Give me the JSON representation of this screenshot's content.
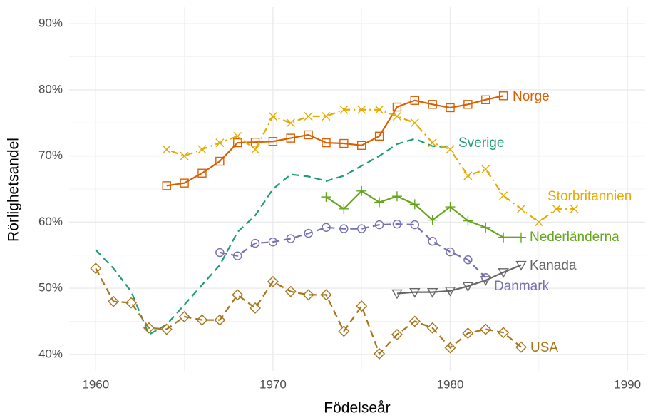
{
  "chart_data": {
    "type": "line",
    "x_label": "Födelseår",
    "y_label": "Rörlighetsandel",
    "xlim": [
      1958.5,
      1991
    ],
    "xticks": [
      1960,
      1970,
      1980,
      1990
    ],
    "ylim": [
      37.5,
      92.5
    ],
    "yticks": [
      {
        "value": 40,
        "label": "40%"
      },
      {
        "value": 50,
        "label": "50%"
      },
      {
        "value": 60,
        "label": "60%"
      },
      {
        "value": 70,
        "label": "70%"
      },
      {
        "value": 80,
        "label": "80%"
      },
      {
        "value": 90,
        "label": "90%"
      }
    ],
    "grid": true,
    "series": [
      {
        "name": "Norge",
        "color": "#d95f02",
        "marker": "square",
        "dash": "solid",
        "x": [
          1964,
          1965,
          1966,
          1967,
          1968,
          1969,
          1970,
          1971,
          1972,
          1973,
          1974,
          1975,
          1976,
          1977,
          1978,
          1979,
          1980,
          1981,
          1982,
          1983
        ],
        "values": [
          65.5,
          65.9,
          67.4,
          69.2,
          72.0,
          72.1,
          72.2,
          72.7,
          73.2,
          72.0,
          71.9,
          71.6,
          73.0,
          77.4,
          78.4,
          77.8,
          77.3,
          77.8,
          78.5,
          79.1
        ]
      },
      {
        "name": "Sverige",
        "color": "#1b9e77",
        "marker": "none",
        "dash": "dashed",
        "x": [
          1960,
          1961,
          1962,
          1963,
          1964,
          1965,
          1966,
          1967,
          1968,
          1969,
          1970,
          1971,
          1972,
          1973,
          1974,
          1975,
          1976,
          1977,
          1978,
          1979,
          1980
        ],
        "values": [
          55.8,
          53,
          49.5,
          43,
          44.5,
          47.5,
          50.5,
          53.5,
          58.5,
          61,
          65,
          67.2,
          66.9,
          66.2,
          67,
          68.5,
          70,
          71.8,
          72.6,
          71.5,
          71.3
        ]
      },
      {
        "name": "Storbritannien",
        "color": "#e6ab02",
        "marker": "x",
        "dash": "dotdash",
        "x": [
          1964,
          1965,
          1966,
          1967,
          1968,
          1969,
          1970,
          1971,
          1972,
          1973,
          1974,
          1975,
          1976,
          1977,
          1978,
          1979,
          1980,
          1981,
          1982,
          1983,
          1984,
          1985,
          1986,
          1987
        ],
        "values": [
          71,
          70,
          71,
          72,
          73,
          71,
          76,
          75,
          76,
          76,
          77,
          77,
          77,
          76,
          75,
          72,
          71,
          67,
          68,
          64,
          62,
          60,
          62,
          62
        ]
      },
      {
        "name": "Nederländerna",
        "color": "#66a61e",
        "marker": "plus",
        "dash": "solid",
        "x": [
          1973,
          1974,
          1975,
          1976,
          1977,
          1978,
          1979,
          1980,
          1981,
          1982,
          1983,
          1984
        ],
        "values": [
          63.8,
          62,
          64.7,
          63,
          63.9,
          62.7,
          60.3,
          62.3,
          60.2,
          59.2,
          57.7,
          57.7
        ]
      },
      {
        "name": "Kanada",
        "color": "#666666",
        "marker": "triangle-down",
        "dash": "solid",
        "x": [
          1977,
          1978,
          1979,
          1980,
          1981,
          1982,
          1983,
          1984
        ],
        "values": [
          49.2,
          49.4,
          49.4,
          49.6,
          50.3,
          51.2,
          52.4,
          53.5
        ]
      },
      {
        "name": "Danmark",
        "color": "#7570b3",
        "marker": "circle",
        "dash": "dashed",
        "x": [
          1967,
          1968,
          1969,
          1970,
          1971,
          1972,
          1973,
          1974,
          1975,
          1976,
          1977,
          1978,
          1979,
          1980,
          1981,
          1982
        ],
        "values": [
          55.4,
          54.9,
          56.8,
          57,
          57.5,
          58.3,
          59.2,
          59,
          59,
          59.6,
          59.7,
          59.6,
          57.1,
          55.5,
          54.3,
          51.6
        ]
      },
      {
        "name": "USA",
        "color": "#a6761d",
        "marker": "diamond",
        "dash": "dashed",
        "x": [
          1960,
          1961,
          1962,
          1963,
          1964,
          1965,
          1966,
          1967,
          1968,
          1969,
          1970,
          1971,
          1972,
          1973,
          1974,
          1975,
          1976,
          1977,
          1978,
          1979,
          1980,
          1981,
          1982,
          1983,
          1984
        ],
        "values": [
          53,
          48,
          47.8,
          44,
          43.8,
          45.7,
          45.2,
          45.2,
          49,
          47,
          51,
          49.5,
          49,
          49,
          43.5,
          47.3,
          40.1,
          43,
          45,
          44,
          41,
          43.2,
          43.8,
          43.3,
          41.1
        ]
      }
    ]
  }
}
